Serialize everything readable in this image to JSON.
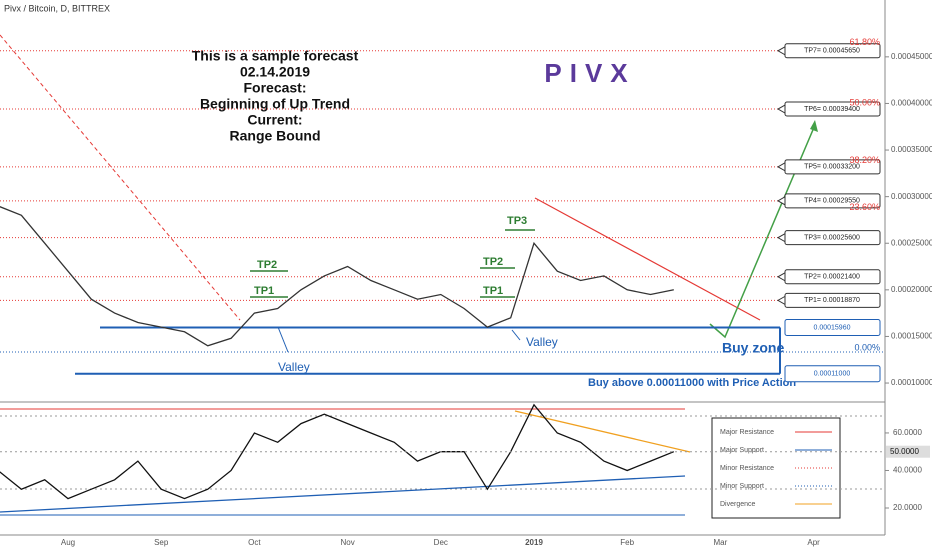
{
  "chart_data": {
    "type": "line",
    "symbol": "Pivx / Bitcoin, D, BITTREX",
    "title": "PIVX",
    "notes": [
      "This is a sample forecast",
      "02.14.2019",
      "Forecast:",
      "Beginning of Up Trend",
      "Current:",
      "Range Bound"
    ],
    "tp_labels": [
      "TP1",
      "TP2",
      "TP3"
    ],
    "valley_label": "Valley",
    "buy_zone_label": "Buy zone",
    "buy_note": "Buy above 0.00011000 with Price Action",
    "categories": [
      null,
      null,
      null,
      "Aug",
      null,
      null,
      null,
      "Sep",
      null,
      null,
      null,
      "Oct",
      null,
      null,
      null,
      "Nov",
      null,
      null,
      null,
      "Dec",
      null,
      null,
      null,
      "2019",
      null,
      null,
      null,
      "Feb",
      null,
      null,
      null,
      "Mar",
      null,
      null,
      null,
      "Apr",
      null,
      null,
      null
    ],
    "series": [
      {
        "color": "#333333",
        "values": [
          0.00029,
          0.00028,
          0.00025,
          0.00022,
          0.00019,
          0.000175,
          0.000165,
          0.00016,
          0.000155,
          0.00014,
          0.000148,
          0.000175,
          0.00018,
          0.0002,
          0.000215,
          0.000225,
          0.00021,
          0.0002,
          0.00019,
          0.000195,
          0.00018,
          0.00016,
          0.00017,
          0.00025,
          0.00022,
          0.00021,
          0.000215,
          0.0002,
          0.000195,
          0.0002,
          null,
          null,
          null,
          null,
          null,
          null,
          null,
          null,
          null
        ]
      }
    ],
    "ylim": [
      8.18e-05,
      0.000511
    ],
    "yticks": [
      {
        "value": 0.0001,
        "label": "0.00010000"
      },
      {
        "value": 0.00015,
        "label": "0.00015000"
      },
      {
        "value": 0.0002,
        "label": "0.00020000"
      },
      {
        "value": 0.00025,
        "label": "0.00025000"
      },
      {
        "value": 0.0003,
        "label": "0.00030000"
      },
      {
        "value": 0.00035,
        "label": "0.00035000"
      },
      {
        "value": 0.0004,
        "label": "0.00040000"
      },
      {
        "value": 0.00045,
        "label": "0.00045000"
      }
    ],
    "levels": [
      {
        "label": "TP7= 0.00045650",
        "value": 0.0004565
      },
      {
        "label": "TP6= 0.00039400",
        "value": 0.000394
      },
      {
        "label": "TP5= 0.00033200",
        "value": 0.000332
      },
      {
        "label": "TP4= 0.00029550",
        "value": 0.0002955
      },
      {
        "label": "TP3= 0.00025600",
        "value": 0.000256
      },
      {
        "label": "TP2= 0.00021400",
        "value": 0.000214
      },
      {
        "label": "TP1= 0.00018870",
        "value": 0.0001887
      }
    ],
    "fib_labels": [
      "61.80%",
      "50.00%",
      "38.20%",
      "23.60%",
      "0.00%"
    ],
    "supports": [
      {
        "label": "0.00015960",
        "value": 0.0001596
      },
      {
        "label": "0.00011000",
        "value": 0.00011
      }
    ],
    "indicator": {
      "values": [
        40,
        30,
        35,
        25,
        30,
        35,
        45,
        30,
        25,
        30,
        40,
        60,
        55,
        65,
        70,
        65,
        60,
        55,
        45,
        50,
        50,
        30,
        50,
        75,
        60,
        55,
        45,
        40,
        45,
        50,
        null,
        null,
        null,
        null,
        null,
        null,
        null,
        null,
        null
      ],
      "color": "#111111",
      "ylim": [
        5.6,
        74.9
      ],
      "yticks": [
        {
          "value": 20,
          "label": "20.0000"
        },
        {
          "value": 40,
          "label": "40.0000"
        },
        {
          "value": 60,
          "label": "60.0000"
        }
      ],
      "current": {
        "value": 50,
        "label": "50.0000"
      }
    },
    "legend": [
      {
        "name": "Major Resistance",
        "color": "#e53935",
        "dash": false
      },
      {
        "name": "Major Support",
        "color": "#1f5fb4",
        "dash": false
      },
      {
        "name": "Minor Resistance",
        "color": "#e53935",
        "dash": true
      },
      {
        "name": "Minor Support",
        "color": "#1f5fb4",
        "dash": true
      },
      {
        "name": "Divergence",
        "color": "#f0a020",
        "dash": false
      }
    ]
  }
}
